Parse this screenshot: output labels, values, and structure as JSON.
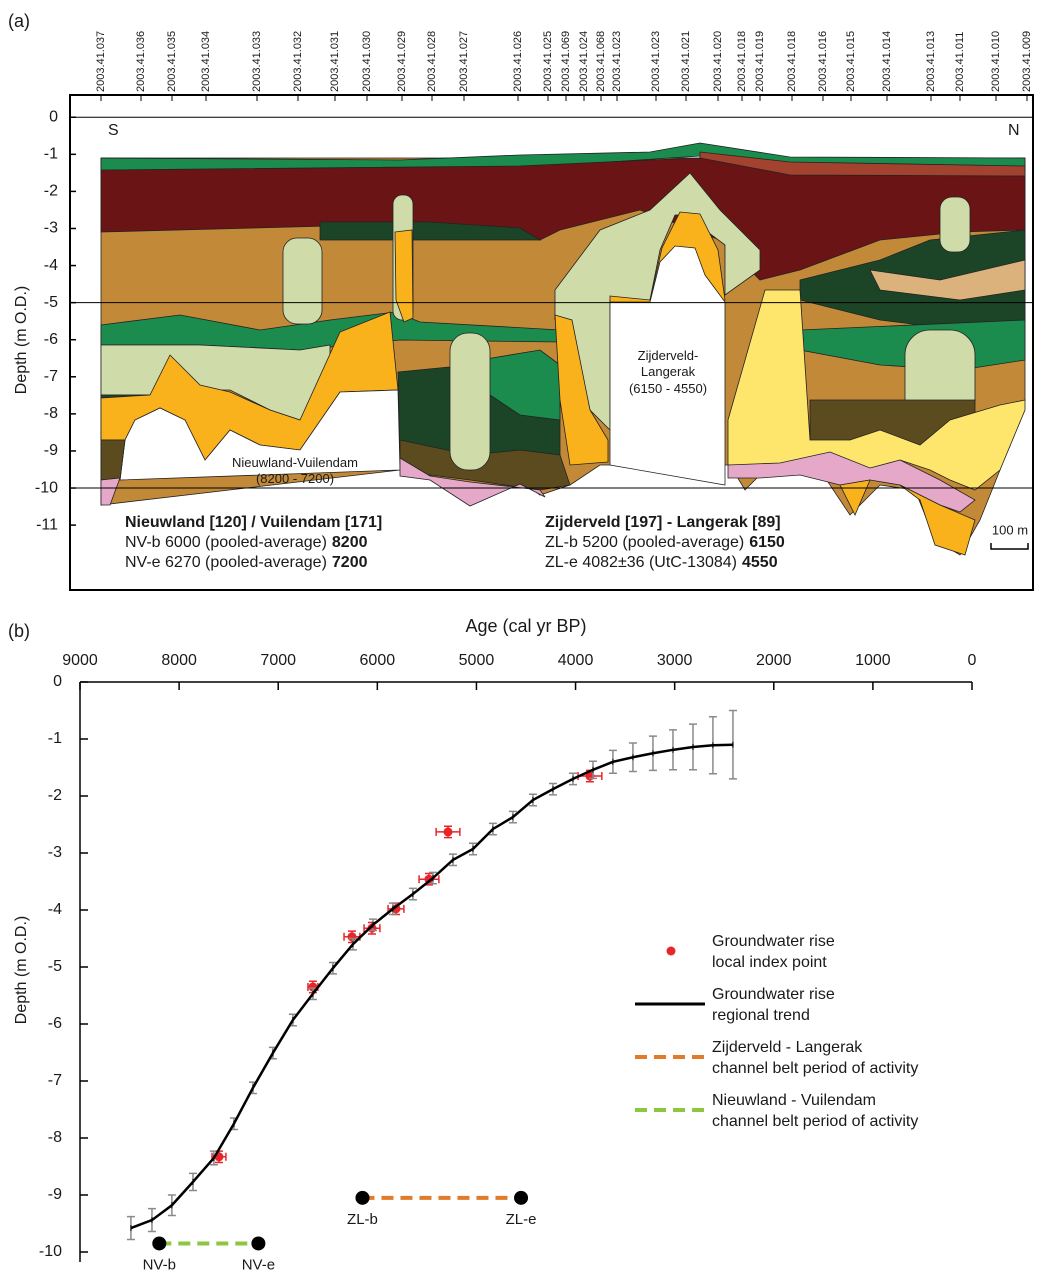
{
  "chart_data": [
    {
      "type": "section",
      "panel": "(a)",
      "ylabel": "Depth (m O.D.)",
      "ylim": [
        -12.75,
        0.6
      ],
      "yticks": [
        0,
        -1,
        -2,
        -3,
        -4,
        -5,
        -6,
        -7,
        -8,
        -9,
        -10,
        -11
      ],
      "hlines": [
        0,
        -5,
        -10
      ],
      "boreholes": [
        "2003.41.037",
        "2003.41.036",
        "2003.41.035",
        "2003.41.034",
        "2003.41.033",
        "2003.41.032",
        "2003.41.031",
        "2003.41.030",
        "2003.41.029",
        "2003.41.028",
        "2003.41.027",
        "2003.41.026",
        "2003.41.025",
        "2003.41.069",
        "2003.41.024",
        "2003.41.068",
        "2003.41.023",
        "2003.41.023",
        "2003.41.021",
        "2003.41.020",
        "2003.41.018",
        "2003.41.019",
        "2003.41.018",
        "2003.41.016",
        "2003.41.015",
        "2003.41.014",
        "2003.41.013",
        "2003.41.011",
        "2003.41.010",
        "2003.41.009"
      ],
      "left_end": "S",
      "right_end": "N",
      "channels": [
        "Nieuwland-Vuilendam\n(8200 - 7200)",
        "Zijderveld-\nLangerak\n(6150 - 4550)"
      ],
      "scale_bar": "100 m",
      "dating": [
        {
          "title": "Nieuwland [120] / Vuilendam [171]",
          "rows": [
            {
              "label": "NV-b 6000 (pooled-average)",
              "value": 8200
            },
            {
              "label": "NV-e 6270 (pooled-average)",
              "value": 7200
            }
          ]
        },
        {
          "title": "Zijderveld [197] - Langerak [89]",
          "rows": [
            {
              "label": "ZL-b 5200 (pooled-average)",
              "value": 6150
            },
            {
              "label": "ZL-e 4082±36 (UtC-13084)",
              "value": 4550
            }
          ]
        }
      ]
    },
    {
      "type": "line",
      "panel": "(b)",
      "xlabel": "Age (cal yr BP)",
      "ylabel": "Depth (m O.D.)",
      "xlim": [
        9000,
        0
      ],
      "xticks": [
        9000,
        8000,
        7000,
        6000,
        5000,
        4000,
        3000,
        2000,
        1000,
        0
      ],
      "ylim": [
        -10,
        0
      ],
      "yticks": [
        0,
        -1,
        -2,
        -3,
        -4,
        -5,
        -6,
        -7,
        -8,
        -9,
        -10
      ],
      "series": [
        {
          "name": "Groundwater rise\nlocal index point",
          "type": "scatter",
          "color": "#e8262a",
          "x": [
            7598,
            6650,
            6256,
            6054,
            5812,
            5479,
            5287,
            3855
          ],
          "values": [
            -8.33,
            -5.35,
            -4.47,
            -4.32,
            -3.98,
            -3.46,
            -2.63,
            -1.65
          ],
          "xerr": [
            70,
            50,
            80,
            80,
            80,
            100,
            120,
            120
          ],
          "yerr": [
            0.1,
            0.1,
            0.1,
            0.1,
            0.1,
            0.1,
            0.1,
            0.1
          ]
        },
        {
          "name": "Groundwater rise\nregional trend",
          "type": "line",
          "color": "#000000",
          "err_color": "#8a8a8a",
          "x": [
            8486,
            8274,
            8073,
            7860,
            7649,
            7447,
            7255,
            7054,
            6852,
            6650,
            6448,
            6246,
            6044,
            5843,
            5641,
            5439,
            5237,
            5035,
            4834,
            4632,
            4430,
            4228,
            4026,
            3824,
            3623,
            3421,
            3219,
            3017,
            2815,
            2614,
            2412
          ],
          "values": [
            -9.58,
            -9.44,
            -9.18,
            -8.77,
            -8.35,
            -7.75,
            -7.12,
            -6.51,
            -5.93,
            -5.47,
            -5.02,
            -4.6,
            -4.26,
            -3.98,
            -3.72,
            -3.44,
            -3.12,
            -2.93,
            -2.58,
            -2.37,
            -2.07,
            -1.88,
            -1.7,
            -1.54,
            -1.4,
            -1.32,
            -1.25,
            -1.19,
            -1.14,
            -1.11,
            -1.1
          ],
          "yerr": [
            0.2,
            0.2,
            0.18,
            0.15,
            0.12,
            0.1,
            0.1,
            0.1,
            0.1,
            0.1,
            0.1,
            0.1,
            0.1,
            0.1,
            0.1,
            0.1,
            0.1,
            0.1,
            0.1,
            0.1,
            0.1,
            0.1,
            0.1,
            0.15,
            0.2,
            0.25,
            0.3,
            0.35,
            0.4,
            0.5,
            0.6
          ]
        },
        {
          "name": "Zijderveld - Langerak\nchannel belt period of activity",
          "type": "period",
          "color": "#e07b2a",
          "x": [
            6150,
            4550
          ],
          "values": [
            -9.05,
            -9.05
          ],
          "point_labels": [
            "ZL-b",
            "ZL-e"
          ]
        },
        {
          "name": "Nieuwland - Vuilendam\nchannel belt period of activity",
          "type": "period",
          "color": "#8dc63f",
          "x": [
            8200,
            7200
          ],
          "values": [
            -9.85,
            -9.85
          ],
          "point_labels": [
            "NV-b",
            "NV-e"
          ]
        }
      ]
    }
  ]
}
